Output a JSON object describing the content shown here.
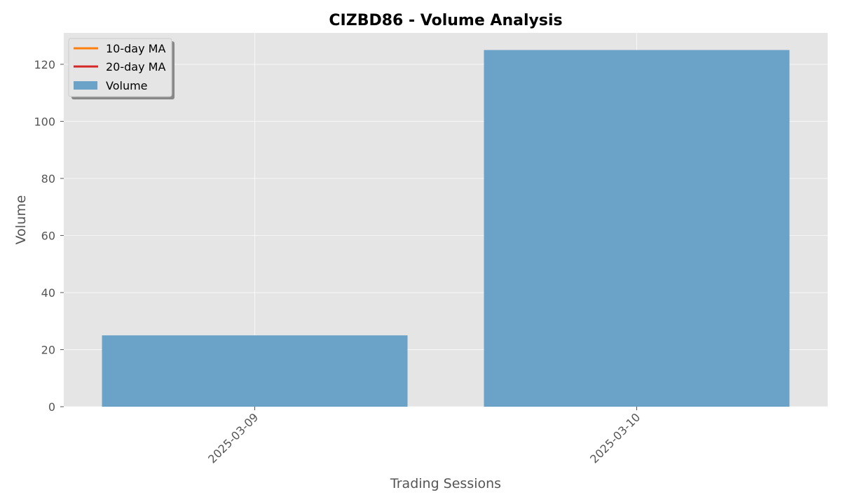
{
  "chart_data": {
    "type": "bar",
    "title": "CIZBD86 - Volume Analysis",
    "xlabel": "Trading Sessions",
    "ylabel": "Volume",
    "categories": [
      "2025-03-09",
      "2025-03-10"
    ],
    "series": [
      {
        "name": "Volume",
        "values": [
          25,
          125
        ],
        "color": "#6ba2c8"
      }
    ],
    "lines": [
      {
        "name": "10-day MA",
        "values": [],
        "color": "#ff7f0e"
      },
      {
        "name": "20-day MA",
        "values": [],
        "color": "#d62728"
      }
    ],
    "ylim": [
      0,
      131
    ],
    "yticks": [
      0,
      20,
      40,
      60,
      80,
      100,
      120
    ],
    "grid": true,
    "legend_position": "top-left",
    "colors": {
      "plot_background": "#e5e5e5",
      "grid": "#ffffff"
    }
  }
}
